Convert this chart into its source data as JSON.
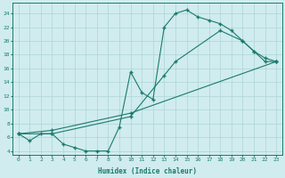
{
  "title": "",
  "xlabel": "Humidex (Indice chaleur)",
  "ylabel": "",
  "xlim": [
    -0.5,
    23.5
  ],
  "ylim": [
    3.5,
    25.5
  ],
  "xticks": [
    0,
    1,
    2,
    3,
    4,
    5,
    6,
    7,
    8,
    9,
    10,
    11,
    12,
    13,
    14,
    15,
    16,
    17,
    18,
    19,
    20,
    21,
    22,
    23
  ],
  "yticks": [
    4,
    6,
    8,
    10,
    12,
    14,
    16,
    18,
    20,
    22,
    24
  ],
  "line_color": "#1a7a6e",
  "bg_color": "#d0ecee",
  "grid_color": "#aed4d6",
  "line1_x": [
    0,
    1,
    2,
    3,
    4,
    5,
    6,
    7,
    8,
    9,
    10,
    11,
    12,
    13,
    14,
    15,
    16,
    17,
    18,
    19,
    20,
    21,
    22,
    23
  ],
  "line1_y": [
    6.5,
    5.5,
    6.5,
    6.5,
    5.0,
    4.5,
    4.0,
    4.0,
    4.0,
    7.5,
    15.5,
    12.5,
    11.5,
    22.0,
    24.0,
    24.5,
    23.5,
    23.0,
    22.5,
    21.5,
    20.0,
    18.5,
    17.0,
    17.0
  ],
  "line2_x": [
    0,
    3,
    10,
    13,
    14,
    18,
    20,
    21,
    22,
    23
  ],
  "line2_y": [
    6.5,
    6.5,
    9.0,
    15.0,
    17.0,
    21.5,
    20.0,
    18.5,
    17.5,
    17.0
  ],
  "line3_x": [
    0,
    3,
    10,
    23
  ],
  "line3_y": [
    6.5,
    7.0,
    9.5,
    17.0
  ]
}
